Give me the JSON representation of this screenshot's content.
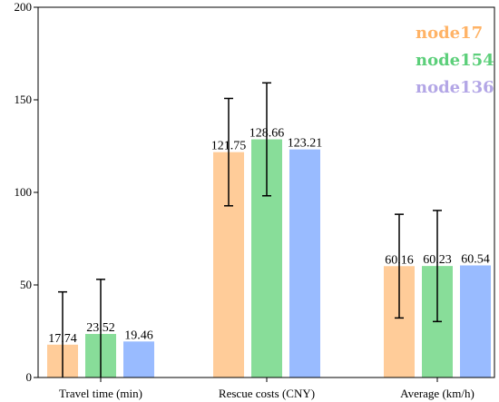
{
  "chart_data": {
    "type": "bar",
    "categories": [
      "Travel time (min)",
      "Rescue costs (CNY)",
      "Average (km/h)"
    ],
    "series": [
      {
        "name": "node17",
        "values": [
          17.74,
          121.75,
          60.16
        ],
        "error": [
          28.5,
          29.0,
          28.0
        ],
        "color": "#FFCC99"
      },
      {
        "name": "node154",
        "values": [
          23.52,
          128.66,
          60.23
        ],
        "error": [
          29.5,
          30.5,
          30.0
        ],
        "color": "#88DD99"
      },
      {
        "name": "node136",
        "values": [
          19.46,
          123.21,
          60.54
        ],
        "error": null,
        "color": "#99BBFF"
      }
    ],
    "data_labels": [
      [
        "17.74",
        "121.75",
        "60.16"
      ],
      [
        "23.52",
        "128.66",
        "60.23"
      ],
      [
        "19.46",
        "123.21",
        "60.54"
      ]
    ],
    "ylim": [
      0,
      200
    ],
    "yticks": [
      0,
      50,
      100,
      150,
      200
    ],
    "xlabel": "",
    "ylabel": "",
    "legend_position": "top-right",
    "legend_colors": [
      "#FFB366",
      "#5CCF7A",
      "#B3A6E6"
    ],
    "grid": false
  }
}
